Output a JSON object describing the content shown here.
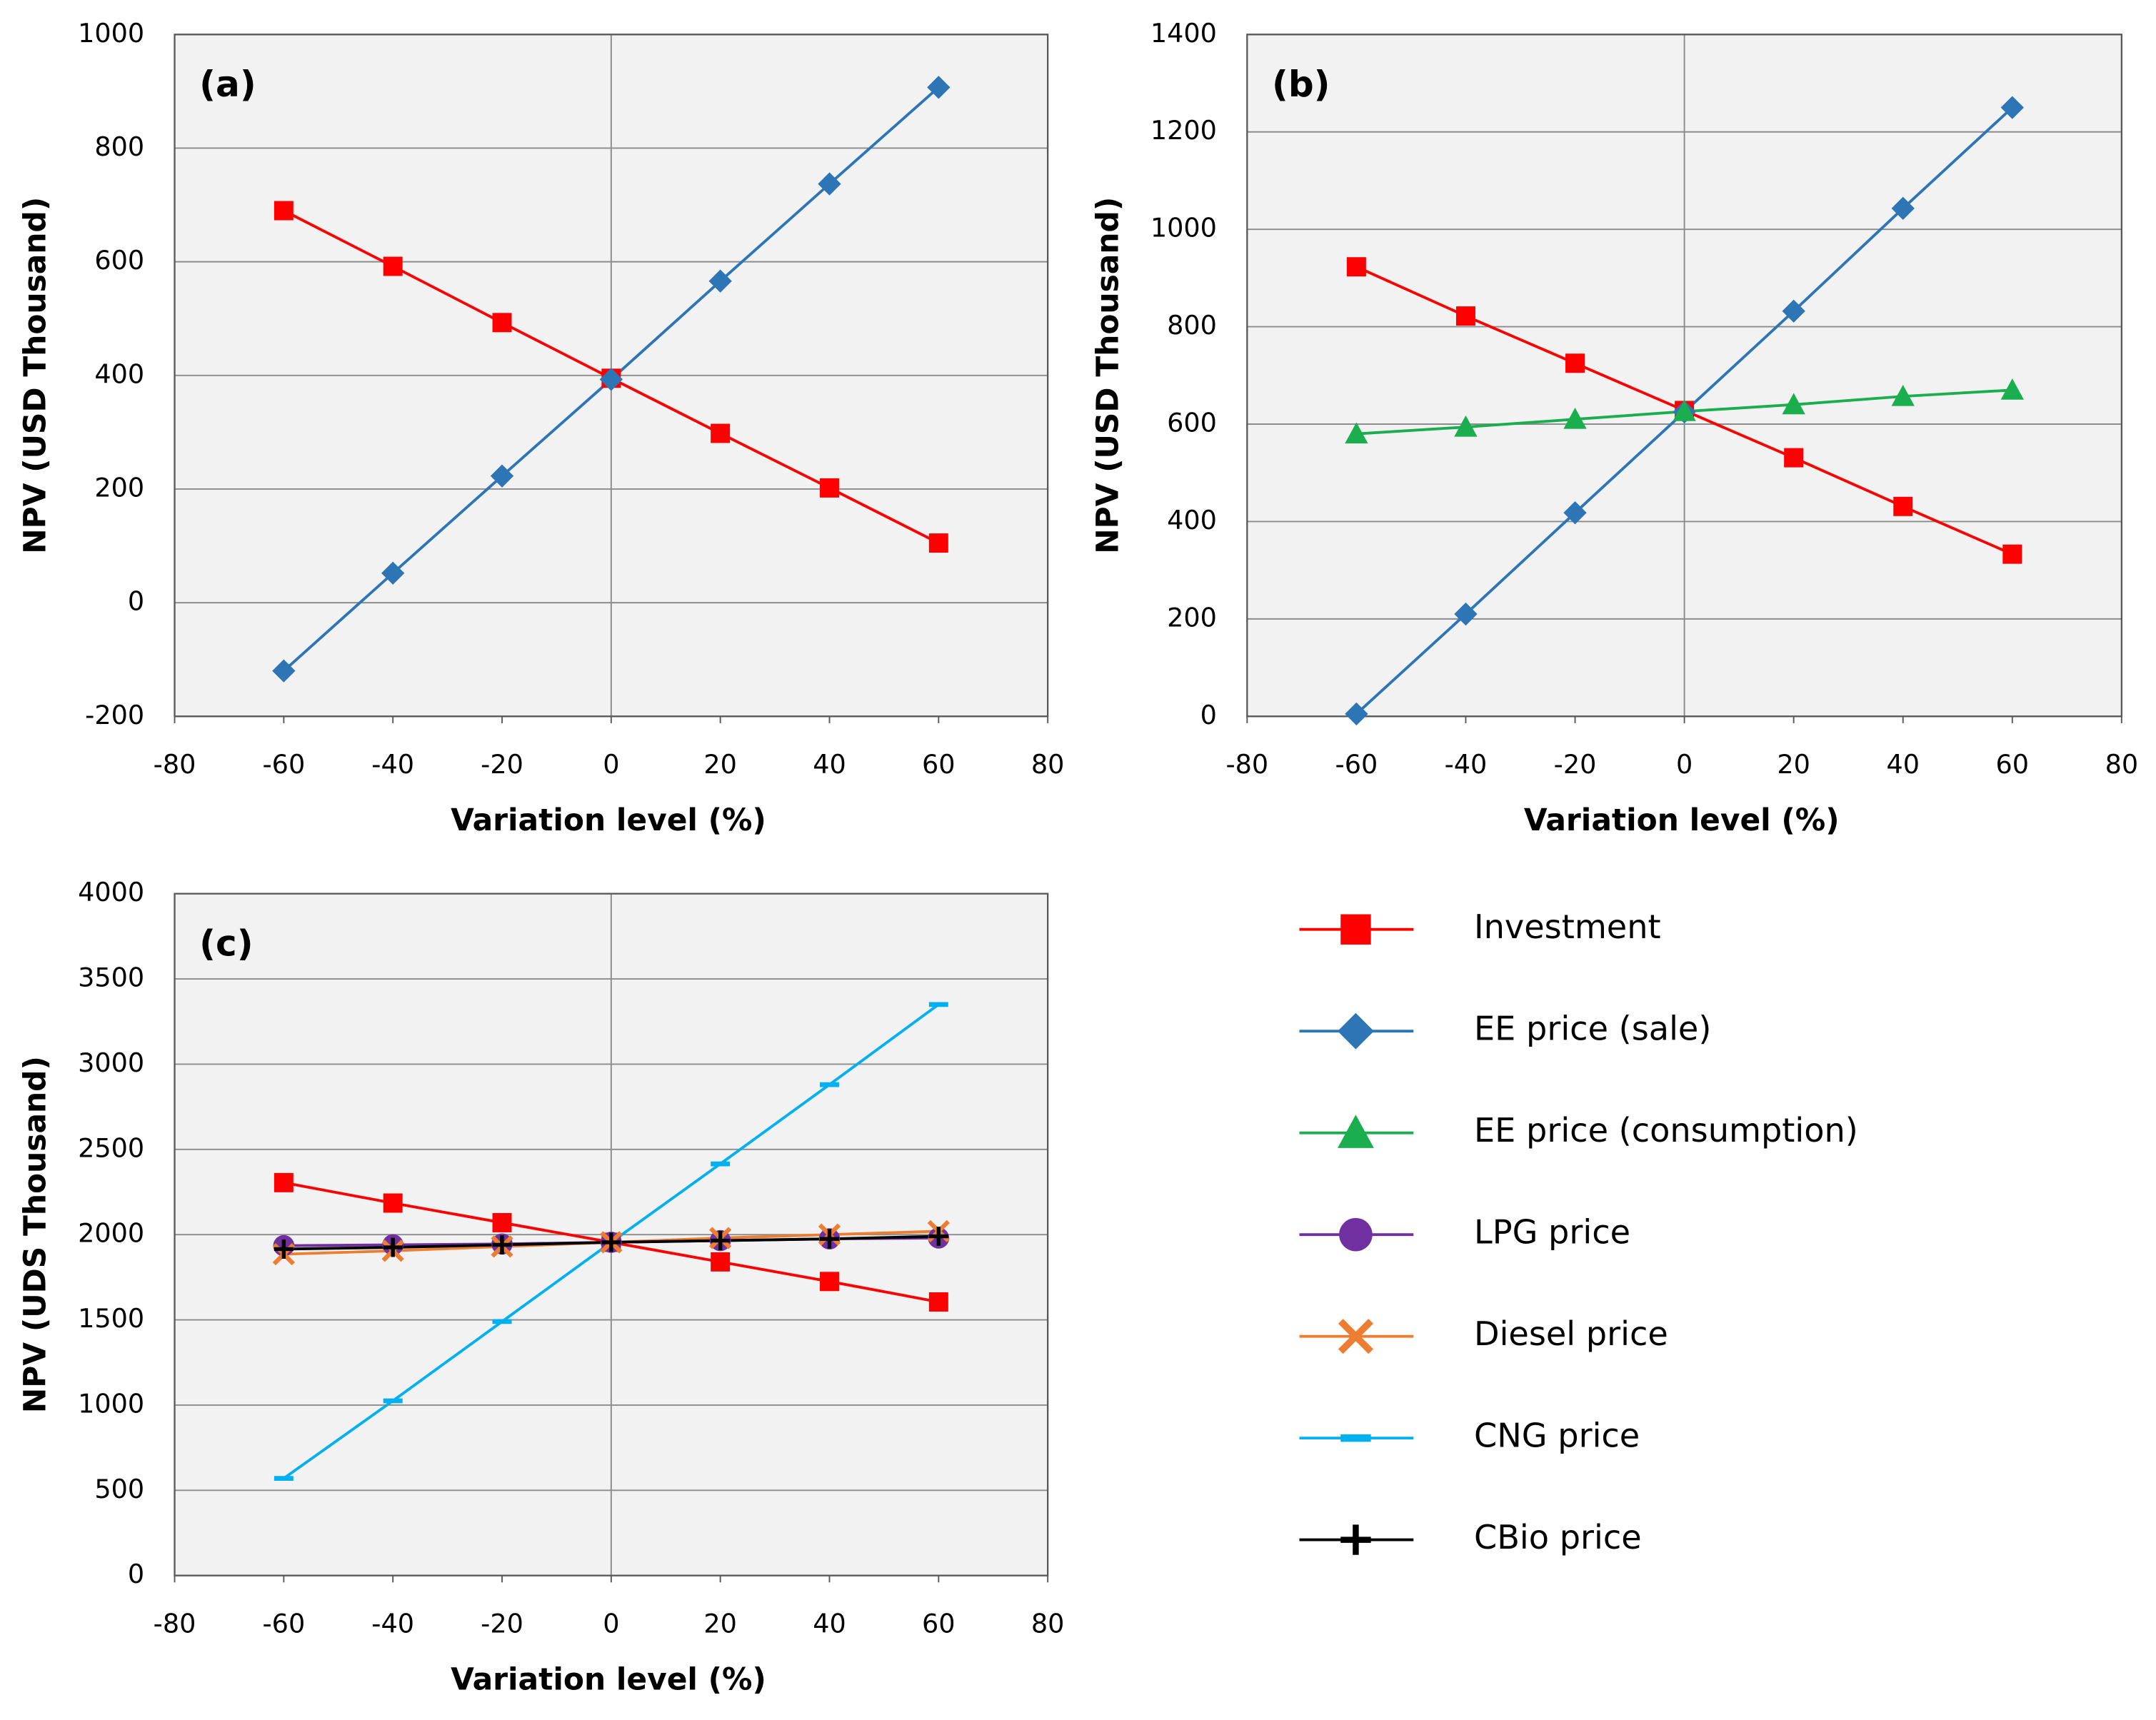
{
  "chart_data": [
    {
      "type": "line",
      "title": "(a)",
      "x_label": "Variation level (%)",
      "y_label": "NPV (USD Thousand)",
      "x": [
        -60,
        -40,
        -20,
        0,
        20,
        40,
        60
      ],
      "xlim": [
        -80,
        80
      ],
      "xticks": [
        -80,
        -60,
        -40,
        -20,
        0,
        20,
        40,
        60,
        80
      ],
      "ylim": [
        -200,
        1000
      ],
      "yticks": [
        -200,
        0,
        200,
        400,
        600,
        800,
        1000
      ],
      "grid": true,
      "series": [
        {
          "color": "#ff0000",
          "marker": "square",
          "values": [
            690,
            592,
            493,
            395,
            298,
            202,
            105
          ]
        },
        {
          "color": "#2e75b6",
          "marker": "diamond",
          "values": [
            -120,
            52,
            223,
            393,
            566,
            737,
            907
          ]
        }
      ]
    },
    {
      "type": "line",
      "title": "(b)",
      "x_label": "Variation level (%)",
      "y_label": "NPV (USD Thousand)",
      "x": [
        -60,
        -40,
        -20,
        0,
        20,
        40,
        60
      ],
      "xlim": [
        -80,
        80
      ],
      "xticks": [
        -80,
        -60,
        -40,
        -20,
        0,
        20,
        40,
        60,
        80
      ],
      "ylim": [
        0,
        1400
      ],
      "yticks": [
        0,
        200,
        400,
        600,
        800,
        1000,
        1200,
        1400
      ],
      "grid": true,
      "series": [
        {
          "color": "#ff0000",
          "marker": "square",
          "values": [
            923,
            822,
            725,
            628,
            531,
            431,
            333
          ]
        },
        {
          "color": "#2e75b6",
          "marker": "diamond",
          "values": [
            5,
            210,
            418,
            625,
            832,
            1043,
            1250
          ]
        },
        {
          "color": "#1aae4e",
          "marker": "triangle",
          "values": [
            580,
            594,
            610,
            626,
            640,
            657,
            670
          ]
        }
      ]
    },
    {
      "type": "line",
      "title": "(c)",
      "x_label": "Variation level (%)",
      "y_label": "NPV (UDS Thousand)",
      "x": [
        -60,
        -40,
        -20,
        0,
        20,
        40,
        60
      ],
      "xlim": [
        -80,
        80
      ],
      "xticks": [
        -80,
        -60,
        -40,
        -20,
        0,
        20,
        40,
        60,
        80
      ],
      "ylim": [
        0,
        4000
      ],
      "yticks": [
        0,
        500,
        1000,
        1500,
        2000,
        2500,
        3000,
        3500,
        4000
      ],
      "grid": true,
      "series": [
        {
          "color": "#ff0000",
          "marker": "square",
          "values": [
            2305,
            2185,
            2070,
            1955,
            1840,
            1725,
            1605
          ]
        },
        {
          "color": "#00b0f0",
          "marker": "dash",
          "values": [
            570,
            1025,
            1490,
            1955,
            2415,
            2880,
            3350
          ]
        },
        {
          "color": "#7030a0",
          "marker": "circle",
          "values": [
            1935,
            1940,
            1945,
            1955,
            1965,
            1975,
            1980
          ]
        },
        {
          "color": "#ed7d31",
          "marker": "x",
          "values": [
            1885,
            1905,
            1930,
            1955,
            1980,
            2000,
            2020
          ]
        },
        {
          "color": "#000000",
          "marker": "plus",
          "values": [
            1915,
            1925,
            1940,
            1955,
            1965,
            1975,
            1990
          ]
        }
      ]
    }
  ],
  "legend": [
    {
      "name": "Investment",
      "color": "#ff0000",
      "marker": "square"
    },
    {
      "name": "EE price (sale)",
      "color": "#2e75b6",
      "marker": "diamond"
    },
    {
      "name": "EE price (consumption)",
      "color": "#1aae4e",
      "marker": "triangle"
    },
    {
      "name": "LPG price",
      "color": "#7030a0",
      "marker": "circle"
    },
    {
      "name": "Diesel price",
      "color": "#ed7d31",
      "marker": "x"
    },
    {
      "name": "CNG price",
      "color": "#00b0f0",
      "marker": "dash"
    },
    {
      "name": "CBio price",
      "color": "#000000",
      "marker": "plus"
    }
  ]
}
